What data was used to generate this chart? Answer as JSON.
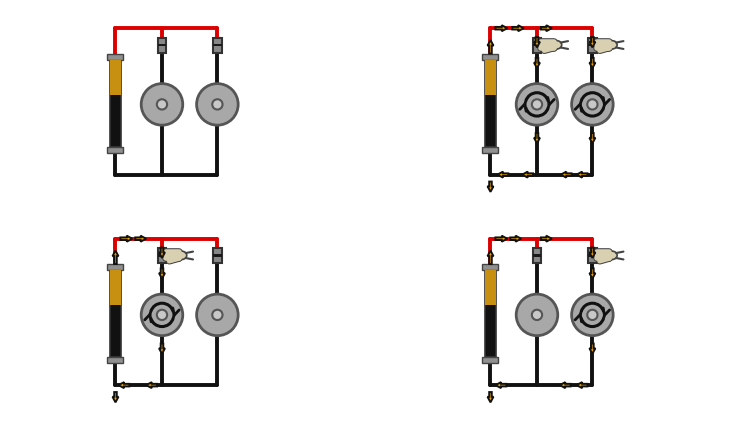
{
  "bg": "#ffffff",
  "red": "#dd0000",
  "black": "#111111",
  "gold": "#c89010",
  "motor_fill": "#a8a8a8",
  "motor_edge": "#555555",
  "arr_fill": "#e8a000",
  "arr_edge": "#111111",
  "btn_fill": "#888888",
  "btn_edge": "#333333",
  "finger_fill": "#d8d0b0",
  "finger_edge": "#444444",
  "diagrams": [
    {
      "b1": false,
      "b2": false
    },
    {
      "b1": true,
      "b2": true
    },
    {
      "b1": true,
      "b2": false
    },
    {
      "b1": false,
      "b2": true
    }
  ]
}
